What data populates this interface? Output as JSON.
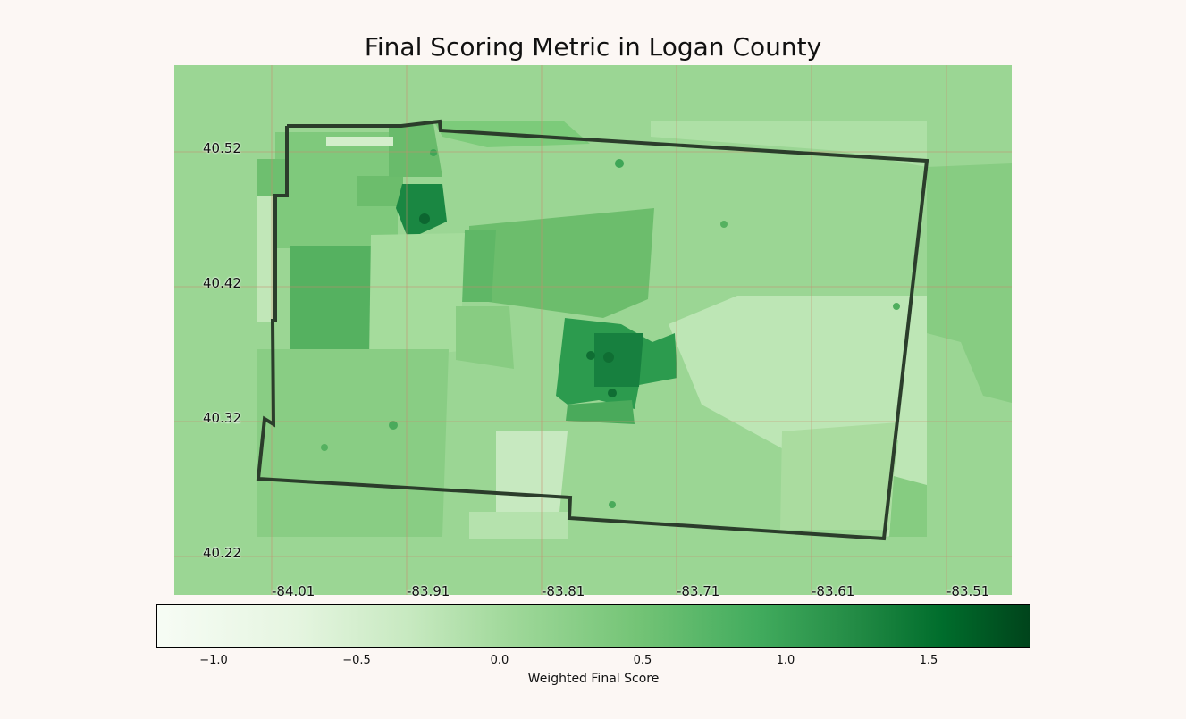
{
  "title": "Final Scoring Metric in Logan County",
  "colors": {
    "background": "#fcf7f4",
    "base_fill": "#9bd694",
    "grid": "#c98a6e",
    "boundary": "#2b3d2b"
  },
  "axes": {
    "lat_ticks": [
      "40.52",
      "40.42",
      "40.32",
      "40.22"
    ],
    "lon_ticks": [
      "-84.01",
      "-83.91",
      "-83.81",
      "-83.71",
      "-83.61",
      "-83.51"
    ]
  },
  "colorbar": {
    "label": "Weighted Final Score",
    "colormap": "Greens",
    "range": [
      -1.2,
      1.85
    ],
    "ticks": [
      "−1.0",
      "−0.5",
      "0.0",
      "0.5",
      "1.0",
      "1.5"
    ]
  }
}
